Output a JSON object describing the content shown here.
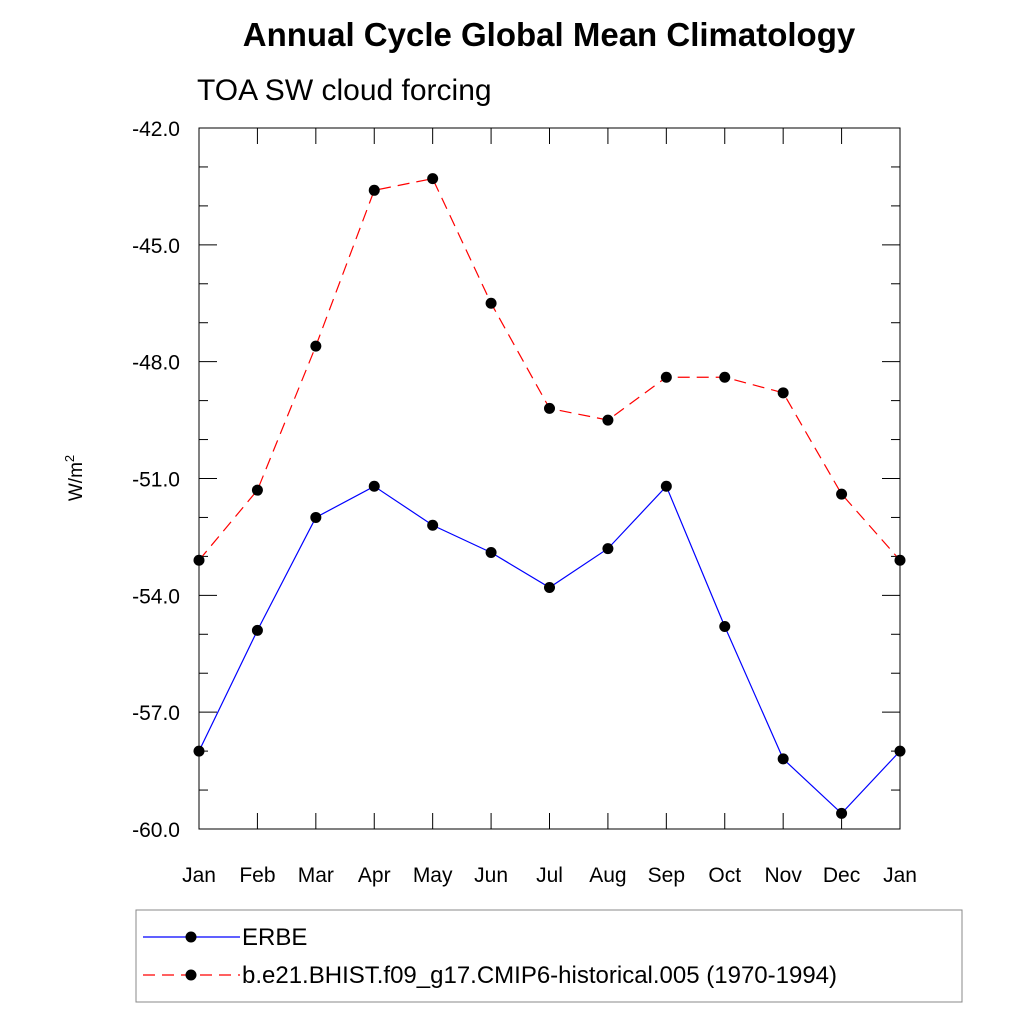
{
  "chart_data": {
    "type": "line",
    "title": "Annual Cycle Global Mean Climatology",
    "subtitle": "TOA SW cloud forcing",
    "xlabel": "",
    "ylabel_base": "W/m",
    "ylabel_sup": "2",
    "categories": [
      "Jan",
      "Feb",
      "Mar",
      "Apr",
      "May",
      "Jun",
      "Jul",
      "Aug",
      "Sep",
      "Oct",
      "Nov",
      "Dec",
      "Jan"
    ],
    "ylim": [
      -60.0,
      -42.0
    ],
    "yticks": [
      -42.0,
      -45.0,
      -48.0,
      -51.0,
      -54.0,
      -57.0,
      -60.0
    ],
    "ytick_labels": [
      "-42.0",
      "-45.0",
      "-48.0",
      "-51.0",
      "-54.0",
      "-57.0",
      "-60.0"
    ],
    "grid": false,
    "legend_position": "bottom",
    "series": [
      {
        "name": "ERBE",
        "color": "#0000ff",
        "line_style": "solid",
        "marker": "filled-circle",
        "values": [
          -58.0,
          -54.9,
          -52.0,
          -51.2,
          -52.2,
          -52.9,
          -53.8,
          -52.8,
          -51.2,
          -54.8,
          -58.2,
          -59.6,
          -58.0
        ]
      },
      {
        "name": "b.e21.BHIST.f09_g17.CMIP6-historical.005 (1970-1994)",
        "color": "#ff0000",
        "line_style": "dashed",
        "marker": "filled-circle",
        "values": [
          -53.1,
          -51.3,
          -47.6,
          -43.6,
          -43.3,
          -46.5,
          -49.2,
          -49.5,
          -48.4,
          -48.4,
          -48.8,
          -51.4,
          -53.1
        ]
      }
    ]
  }
}
